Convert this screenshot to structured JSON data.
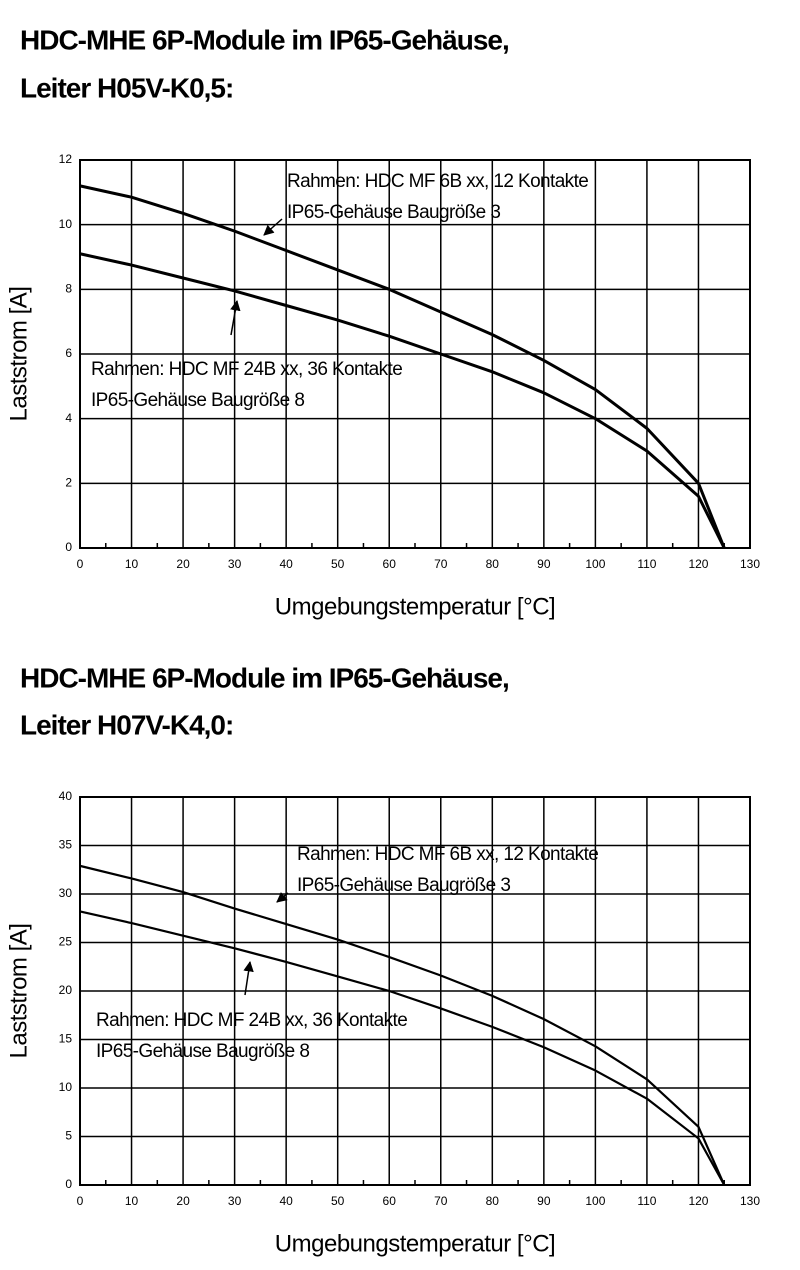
{
  "chart_data": [
    {
      "type": "line",
      "title": [
        "HDC-MHE 6P-Module im IP65-Gehäuse,",
        "Leiter H05V-K0,5:"
      ],
      "x_label": "Umgebungstemperatur [°C]",
      "y_label": "Laststrom [A]",
      "x": [
        0,
        10,
        20,
        30,
        40,
        50,
        60,
        70,
        80,
        90,
        100,
        110,
        120,
        125
      ],
      "series": [
        {
          "color": "#000000",
          "values": [
            11.2,
            10.85,
            10.35,
            9.8,
            9.2,
            8.6,
            8.0,
            7.3,
            6.6,
            5.8,
            4.9,
            3.7,
            2.0,
            0
          ]
        },
        {
          "color": "#000000",
          "values": [
            9.1,
            8.75,
            8.35,
            7.95,
            7.5,
            7.05,
            6.55,
            6.0,
            5.45,
            4.8,
            4.0,
            3.0,
            1.6,
            0
          ]
        }
      ],
      "annotations": [
        [
          "Rahmen: HDC MF 6B xx, 12 Kontakte",
          "IP65-Gehäuse Baugröße 3"
        ],
        [
          "Rahmen: HDC MF 24B xx, 36 Kontakte",
          "IP65-Gehäuse Baugröße 8"
        ]
      ],
      "xlim": [
        0,
        130
      ],
      "xticks": [
        0,
        10,
        20,
        30,
        40,
        50,
        60,
        70,
        80,
        90,
        100,
        110,
        120,
        130
      ],
      "ylim": [
        0,
        12
      ],
      "yticks": [
        0,
        2,
        4,
        6,
        8,
        10,
        12
      ],
      "grid": true
    },
    {
      "type": "line",
      "title": [
        "HDC-MHE 6P-Module im IP65-Gehäuse,",
        "Leiter H07V-K4,0:"
      ],
      "x_label": "Umgebungstemperatur [°C]",
      "y_label": "Laststrom [A]",
      "x": [
        0,
        10,
        20,
        30,
        40,
        50,
        60,
        70,
        80,
        90,
        100,
        110,
        120,
        125
      ],
      "series": [
        {
          "color": "#000000",
          "values": [
            32.9,
            31.6,
            30.2,
            28.5,
            26.9,
            25.3,
            23.5,
            21.6,
            19.5,
            17.1,
            14.3,
            10.9,
            6.0,
            0
          ]
        },
        {
          "color": "#000000",
          "values": [
            28.2,
            27.0,
            25.7,
            24.4,
            23.0,
            21.5,
            20.0,
            18.2,
            16.3,
            14.2,
            11.8,
            8.9,
            4.8,
            0
          ]
        }
      ],
      "annotations": [
        [
          "Rahmen: HDC MF 6B xx, 12 Kontakte",
          "IP65-Gehäuse Baugröße 3"
        ],
        [
          "Rahmen: HDC MF 24B xx, 36 Kontakte",
          "IP65-Gehäuse Baugröße 8"
        ]
      ],
      "xlim": [
        0,
        130
      ],
      "xticks": [
        0,
        10,
        20,
        30,
        40,
        50,
        60,
        70,
        80,
        90,
        100,
        110,
        120,
        130
      ],
      "ylim": [
        0,
        40
      ],
      "yticks": [
        0,
        5,
        10,
        15,
        20,
        25,
        30,
        35,
        40
      ],
      "grid": true
    }
  ]
}
